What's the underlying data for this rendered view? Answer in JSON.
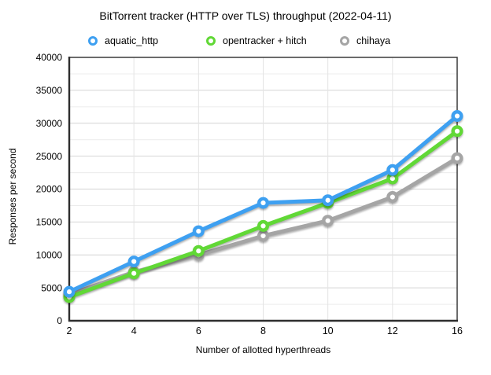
{
  "chart_data": {
    "type": "line",
    "title": "BitTorrent tracker (HTTP over TLS) throughput (2022-04-11)",
    "xlabel": "Number of allotted hyperthreads",
    "ylabel": "Responses per second",
    "categories": [
      2,
      4,
      6,
      8,
      10,
      12,
      16
    ],
    "series": [
      {
        "name": "aquatic_http",
        "color": "#3EA0F1",
        "values": [
          4400,
          9000,
          13600,
          17900,
          18300,
          22900,
          31100
        ]
      },
      {
        "name": "opentracker + hitch",
        "color": "#61D836",
        "values": [
          3600,
          7200,
          10600,
          14400,
          17900,
          21600,
          28800
        ]
      },
      {
        "name": "chihaya",
        "color": "#A5A5A5",
        "values": [
          4000,
          7400,
          10000,
          12900,
          15200,
          18800,
          24700
        ]
      }
    ],
    "ylim": [
      0,
      40000
    ],
    "y_major_step": 5000,
    "y_minor_step": 2500,
    "grid": true,
    "legend_position": "top",
    "marker_style": "ring",
    "axis_border_color": "#3a3a3a",
    "major_grid_color": "#d4d4d4",
    "minor_grid_color": "#ececec",
    "vertical_grid_color": "#e4e4e4",
    "background_color": "#ffffff"
  }
}
